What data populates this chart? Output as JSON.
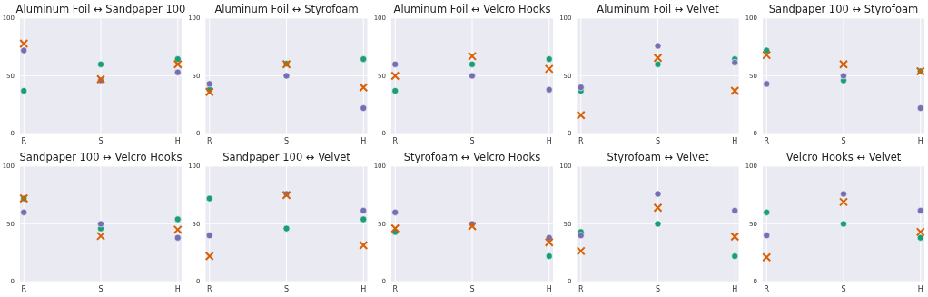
{
  "chart_data": [
    {
      "type": "scatter",
      "title": "Aluminum Foil ↔ Sandpaper 100",
      "categories": [
        "R",
        "S",
        "H"
      ],
      "ylim": [
        0,
        100
      ],
      "yticks": [
        0,
        50,
        100
      ],
      "grid": true,
      "series": [
        {
          "color": "#1b9e77",
          "marker": "circle",
          "values": [
            37,
            60,
            64.5
          ]
        },
        {
          "color": "#7570b3",
          "marker": "circle",
          "values": [
            72,
            46,
            53
          ]
        },
        {
          "color": "#d95f02",
          "marker": "cross",
          "values": [
            78,
            47,
            60
          ]
        }
      ]
    },
    {
      "type": "scatter",
      "title": "Aluminum Foil ↔ Styrofoam",
      "categories": [
        "R",
        "S",
        "H"
      ],
      "ylim": [
        0,
        100
      ],
      "yticks": [
        0,
        50,
        100
      ],
      "grid": true,
      "series": [
        {
          "color": "#1b9e77",
          "marker": "circle",
          "values": [
            38,
            60.5,
            64.5
          ]
        },
        {
          "color": "#7570b3",
          "marker": "circle",
          "values": [
            43,
            50,
            22
          ]
        },
        {
          "color": "#d95f02",
          "marker": "cross",
          "values": [
            36,
            60,
            40
          ]
        }
      ]
    },
    {
      "type": "scatter",
      "title": "Aluminum Foil ↔ Velcro Hooks",
      "categories": [
        "R",
        "S",
        "H"
      ],
      "ylim": [
        0,
        100
      ],
      "yticks": [
        0,
        50,
        100
      ],
      "grid": true,
      "series": [
        {
          "color": "#1b9e77",
          "marker": "circle",
          "values": [
            37,
            60,
            64.5
          ]
        },
        {
          "color": "#7570b3",
          "marker": "circle",
          "values": [
            60,
            50,
            38
          ]
        },
        {
          "color": "#d95f02",
          "marker": "cross",
          "values": [
            50,
            67,
            56
          ]
        }
      ]
    },
    {
      "type": "scatter",
      "title": "Aluminum Foil ↔ Velvet",
      "categories": [
        "R",
        "S",
        "H"
      ],
      "ylim": [
        0,
        100
      ],
      "yticks": [
        0,
        50,
        100
      ],
      "grid": true,
      "series": [
        {
          "color": "#1b9e77",
          "marker": "circle",
          "values": [
            37,
            60,
            64.5
          ]
        },
        {
          "color": "#7570b3",
          "marker": "circle",
          "values": [
            40,
            76,
            61.5
          ]
        },
        {
          "color": "#d95f02",
          "marker": "cross",
          "values": [
            16,
            65.5,
            37
          ]
        }
      ]
    },
    {
      "type": "scatter",
      "title": "Sandpaper 100 ↔ Styrofoam",
      "categories": [
        "R",
        "S",
        "H"
      ],
      "ylim": [
        0,
        100
      ],
      "yticks": [
        0,
        50,
        100
      ],
      "grid": true,
      "series": [
        {
          "color": "#1b9e77",
          "marker": "circle",
          "values": [
            72,
            46,
            54
          ]
        },
        {
          "color": "#7570b3",
          "marker": "circle",
          "values": [
            43,
            50,
            22
          ]
        },
        {
          "color": "#d95f02",
          "marker": "cross",
          "values": [
            68,
            60,
            54
          ]
        }
      ]
    },
    {
      "type": "scatter",
      "title": "Sandpaper 100 ↔ Velcro Hooks",
      "categories": [
        "R",
        "S",
        "H"
      ],
      "ylim": [
        0,
        100
      ],
      "yticks": [
        0,
        50,
        100
      ],
      "grid": true,
      "series": [
        {
          "color": "#1b9e77",
          "marker": "circle",
          "values": [
            72,
            46,
            54
          ]
        },
        {
          "color": "#7570b3",
          "marker": "circle",
          "values": [
            60,
            50,
            38
          ]
        },
        {
          "color": "#d95f02",
          "marker": "cross",
          "values": [
            72,
            39.5,
            45
          ]
        }
      ]
    },
    {
      "type": "scatter",
      "title": "Sandpaper 100 ↔ Velvet",
      "categories": [
        "R",
        "S",
        "H"
      ],
      "ylim": [
        0,
        100
      ],
      "yticks": [
        0,
        50,
        100
      ],
      "grid": true,
      "series": [
        {
          "color": "#1b9e77",
          "marker": "circle",
          "values": [
            72,
            46,
            54
          ]
        },
        {
          "color": "#7570b3",
          "marker": "circle",
          "values": [
            40,
            76,
            61.5
          ]
        },
        {
          "color": "#d95f02",
          "marker": "cross",
          "values": [
            22,
            75,
            31.5
          ]
        }
      ]
    },
    {
      "type": "scatter",
      "title": "Styrofoam ↔ Velcro Hooks",
      "categories": [
        "R",
        "S",
        "H"
      ],
      "ylim": [
        0,
        100
      ],
      "yticks": [
        0,
        50,
        100
      ],
      "grid": true,
      "series": [
        {
          "color": "#1b9e77",
          "marker": "circle",
          "values": [
            43,
            null,
            22
          ]
        },
        {
          "color": "#7570b3",
          "marker": "circle",
          "values": [
            60,
            50,
            38
          ]
        },
        {
          "color": "#d95f02",
          "marker": "cross",
          "values": [
            46,
            48,
            34
          ]
        }
      ]
    },
    {
      "type": "scatter",
      "title": "Styrofoam ↔ Velvet",
      "categories": [
        "R",
        "S",
        "H"
      ],
      "ylim": [
        0,
        100
      ],
      "yticks": [
        0,
        50,
        100
      ],
      "grid": true,
      "series": [
        {
          "color": "#1b9e77",
          "marker": "circle",
          "values": [
            43,
            50,
            22
          ]
        },
        {
          "color": "#7570b3",
          "marker": "circle",
          "values": [
            40,
            76,
            61.5
          ]
        },
        {
          "color": "#d95f02",
          "marker": "cross",
          "values": [
            26.5,
            64,
            39
          ]
        }
      ]
    },
    {
      "type": "scatter",
      "title": "Velcro Hooks ↔ Velvet",
      "categories": [
        "R",
        "S",
        "H"
      ],
      "ylim": [
        0,
        100
      ],
      "yticks": [
        0,
        50,
        100
      ],
      "grid": true,
      "series": [
        {
          "color": "#1b9e77",
          "marker": "circle",
          "values": [
            60,
            50,
            38
          ]
        },
        {
          "color": "#7570b3",
          "marker": "circle",
          "values": [
            40,
            76,
            61.5
          ]
        },
        {
          "color": "#d95f02",
          "marker": "cross",
          "values": [
            21,
            69,
            43
          ]
        }
      ]
    }
  ]
}
